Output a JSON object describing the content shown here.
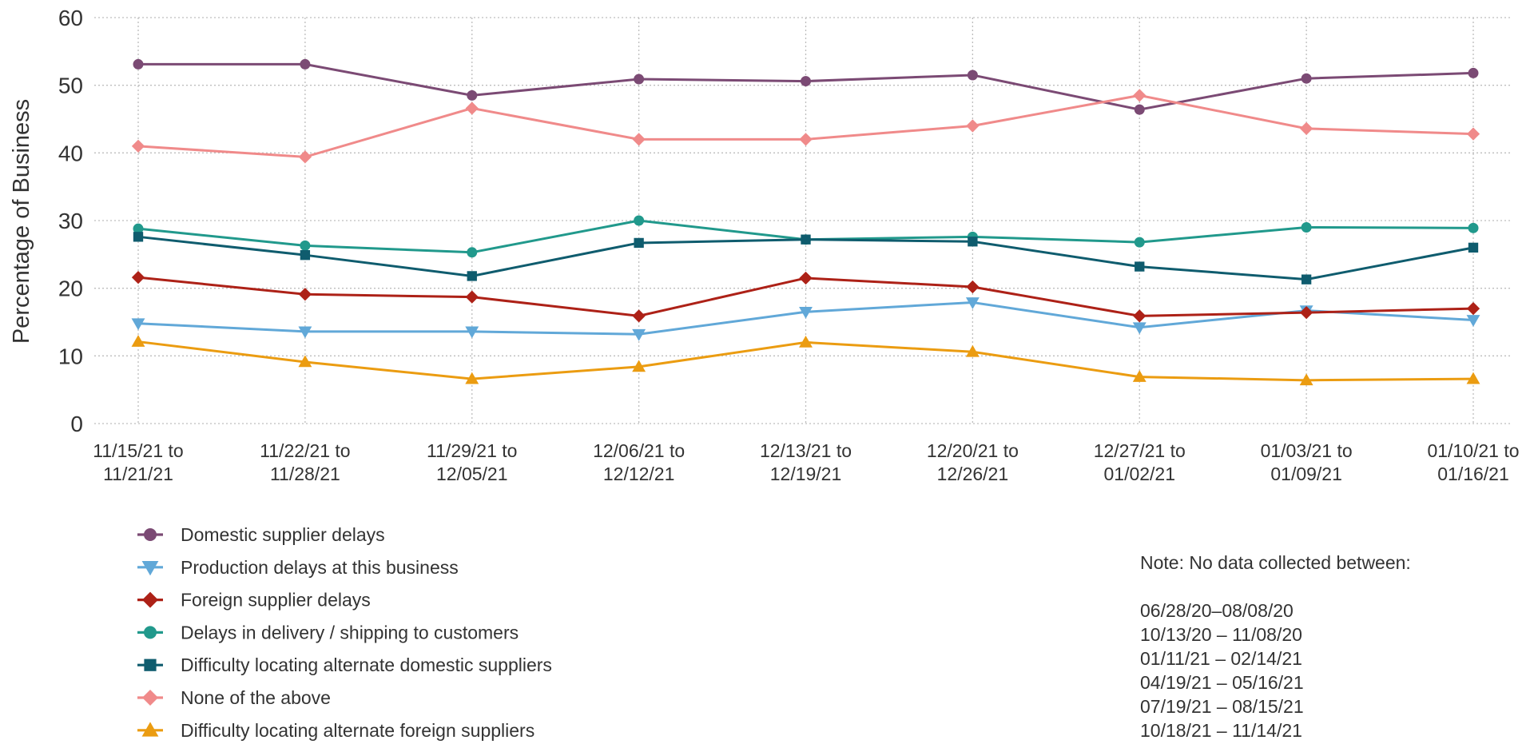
{
  "chart_data": {
    "type": "line",
    "ylabel": "Percentage of Business",
    "ylim": [
      0,
      60
    ],
    "yticks": [
      0,
      10,
      20,
      30,
      40,
      50,
      60
    ],
    "grid": true,
    "legend_position": "bottom-left",
    "x": [
      [
        "11/15/21 to",
        "11/21/21"
      ],
      [
        "11/22/21 to",
        "11/28/21"
      ],
      [
        "11/29/21 to",
        "12/05/21"
      ],
      [
        "12/06/21 to",
        "12/12/21"
      ],
      [
        "12/13/21 to",
        "12/19/21"
      ],
      [
        "12/20/21 to",
        "12/26/21"
      ],
      [
        "12/27/21 to",
        "01/02/21"
      ],
      [
        "01/03/21 to",
        "01/09/21"
      ],
      [
        "01/10/21 to",
        "01/16/21"
      ]
    ],
    "series": [
      {
        "name": "Domestic supplier delays",
        "color": "#7b4a74",
        "marker": "circle",
        "values": [
          53.1,
          53.1,
          48.5,
          50.9,
          50.6,
          51.5,
          46.4,
          51.0,
          51.8
        ]
      },
      {
        "name": "Production delays at this business",
        "color": "#61a8d8",
        "marker": "triangle-down",
        "values": [
          14.8,
          13.6,
          13.6,
          13.2,
          16.5,
          17.9,
          14.2,
          16.7,
          15.3
        ]
      },
      {
        "name": "Foreign supplier delays",
        "color": "#ad2117",
        "marker": "diamond",
        "values": [
          21.6,
          19.1,
          18.7,
          15.9,
          21.5,
          20.2,
          15.9,
          16.4,
          17.0
        ]
      },
      {
        "name": "Delays in delivery / shipping to customers",
        "color": "#21998c",
        "marker": "circle",
        "values": [
          28.8,
          26.3,
          25.3,
          30.0,
          27.2,
          27.6,
          26.8,
          29.0,
          28.9
        ]
      },
      {
        "name": "Difficulty locating alternate domestic suppliers",
        "color": "#0f5c6e",
        "marker": "square",
        "values": [
          27.6,
          24.9,
          21.8,
          26.7,
          27.2,
          26.9,
          23.2,
          21.3,
          26.0
        ]
      },
      {
        "name": "None of the above",
        "color": "#f08a8a",
        "marker": "diamond",
        "values": [
          41.0,
          39.4,
          46.6,
          42.0,
          42.0,
          44.0,
          48.5,
          43.6,
          42.8
        ]
      },
      {
        "name": "Difficulty locating alternate foreign suppliers",
        "color": "#eb9c11",
        "marker": "triangle-up",
        "values": [
          12.1,
          9.1,
          6.6,
          8.4,
          12.0,
          10.6,
          6.9,
          6.4,
          6.6
        ]
      }
    ]
  },
  "note": {
    "title": "Note: No data collected between:",
    "ranges": [
      "06/28/20–08/08/20",
      "10/13/20 – 11/08/20",
      "01/11/21 – 02/14/21",
      "04/19/21 – 05/16/21",
      "07/19/21 – 08/15/21",
      "10/18/21 – 11/14/21"
    ]
  }
}
